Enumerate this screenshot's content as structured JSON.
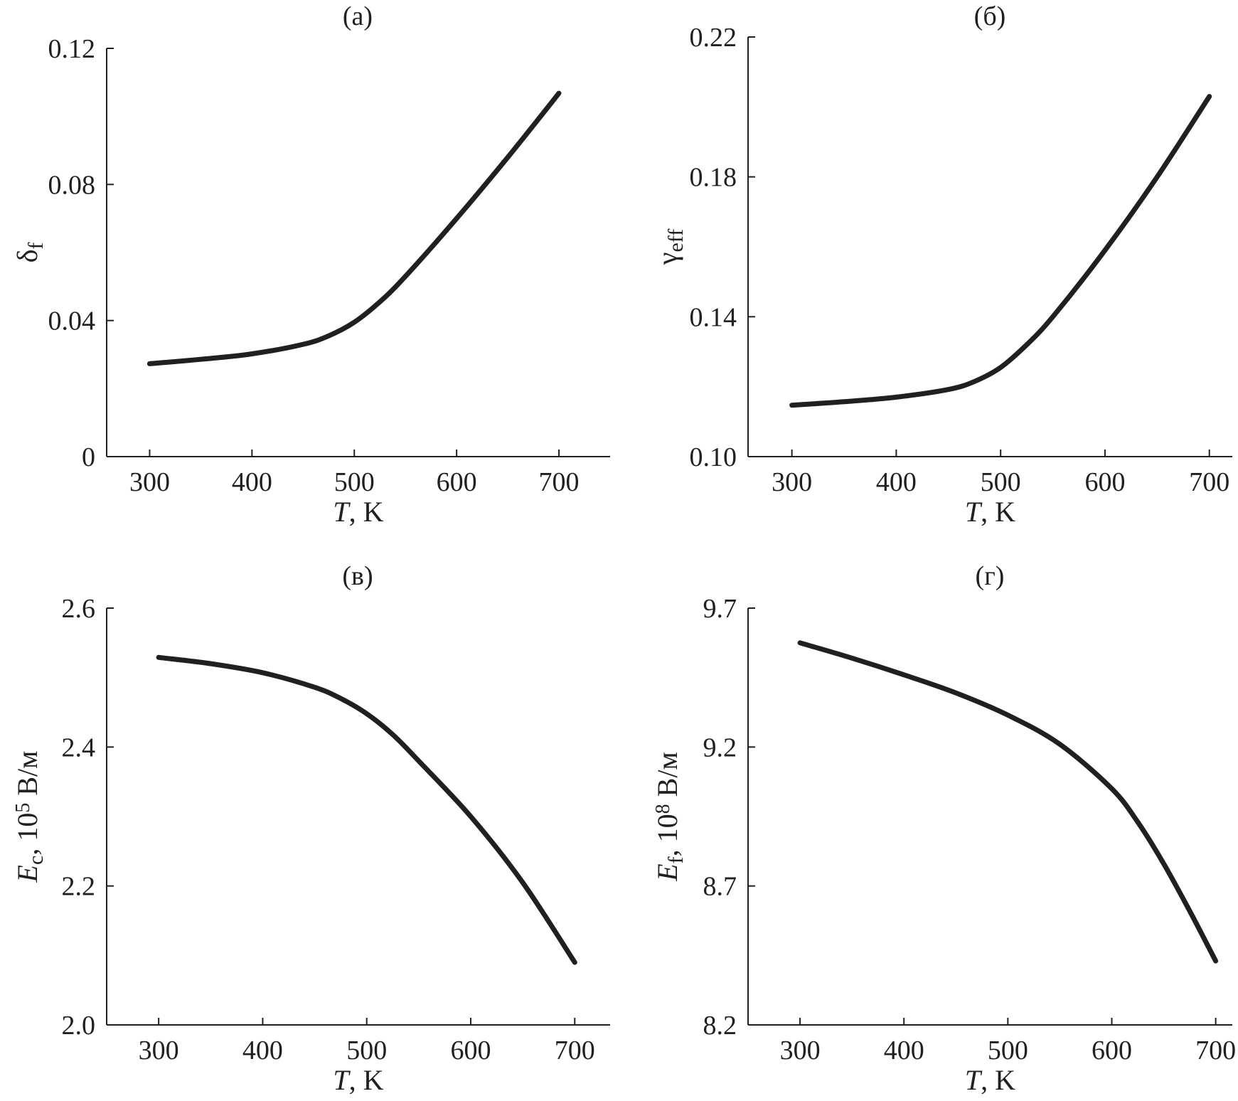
{
  "chart_data": [
    {
      "type": "line",
      "title": "(а)",
      "xlabel": {
        "var": "T",
        "unit": ", K"
      },
      "ylabel": {
        "main": "δ",
        "sub": "f"
      },
      "xlim": [
        258,
        750
      ],
      "ylim": [
        0,
        0.12
      ],
      "xticks": [
        300,
        400,
        500,
        600,
        700
      ],
      "yticks": [
        0,
        0.04,
        0.08,
        0.12
      ],
      "xtick_labels": [
        "300",
        "400",
        "500",
        "600",
        "700"
      ],
      "ytick_labels": [
        "0",
        "0.04",
        "0.08",
        "0.12"
      ],
      "grid": false,
      "series": [
        {
          "x": [
            300,
            350,
            400,
            450,
            475,
            500,
            525,
            550,
            600,
            650,
            700
          ],
          "y": [
            0.0273,
            0.0286,
            0.0302,
            0.033,
            0.0355,
            0.0395,
            0.0455,
            0.053,
            0.07,
            0.088,
            0.1068
          ],
          "color": "#231f20"
        }
      ]
    },
    {
      "type": "line",
      "title": "(б)",
      "xlabel": {
        "var": "T",
        "unit": ", K"
      },
      "ylabel": {
        "main": "γ",
        "sub": "eff"
      },
      "xlim": [
        258,
        722
      ],
      "ylim": [
        0.1,
        0.22
      ],
      "xticks": [
        300,
        400,
        500,
        600,
        700
      ],
      "yticks": [
        0.1,
        0.14,
        0.18,
        0.22
      ],
      "xtick_labels": [
        "300",
        "400",
        "500",
        "600",
        "700"
      ],
      "ytick_labels": [
        "0.10",
        "0.14",
        "0.18",
        "0.22"
      ],
      "grid": false,
      "series": [
        {
          "x": [
            300,
            350,
            400,
            450,
            475,
            500,
            525,
            550,
            600,
            650,
            700
          ],
          "y": [
            0.1147,
            0.1157,
            0.117,
            0.1192,
            0.1215,
            0.1255,
            0.132,
            0.14,
            0.159,
            0.18,
            0.203
          ],
          "color": "#231f20"
        }
      ]
    },
    {
      "type": "line",
      "title": "(в)",
      "xlabel": {
        "var": "T",
        "unit": ", K"
      },
      "ylabel": {
        "main": "E",
        "sub": "c",
        "rest": ", 10",
        "sup": "5",
        "unit": " В/м"
      },
      "xlim": [
        250,
        734
      ],
      "ylim": [
        2.0,
        2.6
      ],
      "xticks": [
        300,
        400,
        500,
        600,
        700
      ],
      "yticks": [
        2.0,
        2.2,
        2.4,
        2.6
      ],
      "xtick_labels": [
        "300",
        "400",
        "500",
        "600",
        "700"
      ],
      "ytick_labels": [
        "2.0",
        "2.2",
        "2.4",
        "2.6"
      ],
      "grid": false,
      "series": [
        {
          "x": [
            300,
            350,
            400,
            450,
            475,
            500,
            525,
            550,
            600,
            650,
            700
          ],
          "y": [
            2.529,
            2.52,
            2.507,
            2.486,
            2.47,
            2.448,
            2.418,
            2.38,
            2.3,
            2.205,
            2.09
          ],
          "color": "#231f20"
        }
      ]
    },
    {
      "type": "line",
      "title": "(г)",
      "xlabel": {
        "var": "T",
        "unit": ", K"
      },
      "ylabel": {
        "main": "E",
        "sub": "f",
        "rest": ", 10",
        "sup": "8",
        "unit": " В/м"
      },
      "xlim": [
        250,
        716
      ],
      "ylim": [
        8.2,
        9.7
      ],
      "xticks": [
        300,
        400,
        500,
        600,
        700
      ],
      "yticks": [
        8.2,
        8.7,
        9.2,
        9.7
      ],
      "xtick_labels": [
        "300",
        "400",
        "500",
        "600",
        "700"
      ],
      "ytick_labels": [
        "8.2",
        "8.7",
        "9.2",
        "9.7"
      ],
      "grid": false,
      "series": [
        {
          "x": [
            300,
            350,
            400,
            450,
            500,
            550,
            600,
            625,
            650,
            675,
            700
          ],
          "y": [
            9.575,
            9.52,
            9.46,
            9.395,
            9.315,
            9.21,
            9.05,
            8.93,
            8.78,
            8.61,
            8.43
          ],
          "color": "#231f20"
        }
      ]
    }
  ]
}
